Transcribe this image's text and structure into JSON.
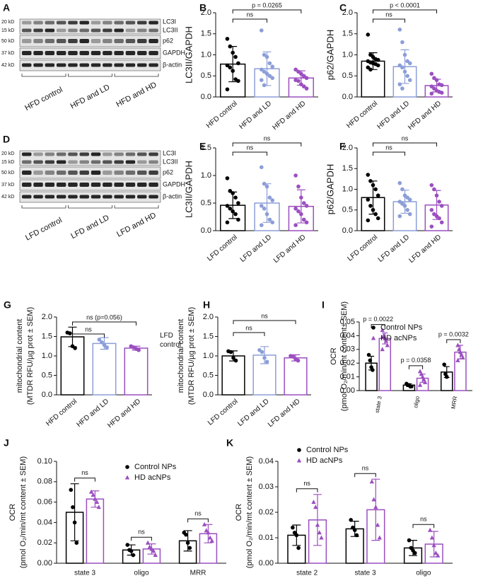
{
  "blots": [
    {
      "panel": "A",
      "kd_labels": [
        "20 kD",
        "15 kD",
        "50 kD",
        "37 kD",
        "42 kD"
      ],
      "proteins": [
        "LC3I",
        "LC3II",
        "p62",
        "GAPDH",
        "β-actin"
      ],
      "groups": [
        "HFD control",
        "HFD and LD",
        "HFD and HD"
      ]
    },
    {
      "panel": "D",
      "kd_labels": [
        "20 kD",
        "15 kD",
        "50 kD",
        "37 kD",
        "42 kD"
      ],
      "proteins": [
        "LC3I",
        "LC3II",
        "p62",
        "GAPDH",
        "β-actin"
      ],
      "groups": [
        "LFD control",
        "LFD and LD",
        "LFD and HD"
      ]
    }
  ],
  "annotation": "LFD control",
  "chart_data": [
    {
      "type": "bar",
      "panel": "B",
      "ylabel": "LC3II/GAPDH",
      "categories": [
        "HFD control",
        "HFD and LD",
        "HFD and HD"
      ],
      "colors": [
        "#000000",
        "#8c9ed8",
        "#9b4fc0"
      ],
      "values": [
        0.78,
        0.67,
        0.45
      ],
      "errors": [
        0.42,
        0.4,
        0.17
      ],
      "points": [
        [
          1.38,
          1.2,
          1.05,
          0.95,
          0.8,
          0.75,
          0.7,
          0.62,
          0.42,
          0.38,
          0.18
        ],
        [
          1.58,
          1.0,
          0.95,
          0.8,
          0.72,
          0.65,
          0.6,
          0.55,
          0.5,
          0.45,
          0.4,
          0.28
        ],
        [
          0.65,
          0.6,
          0.55,
          0.5,
          0.45,
          0.4,
          0.38,
          0.3,
          0.25,
          0.2
        ]
      ],
      "ylim": [
        0,
        2
      ],
      "yticks": [
        {
          "value": 0,
          "label": "0.0"
        },
        0.5,
        {
          "value": 1,
          "label": "1.0"
        },
        1.5,
        {
          "value": 2,
          "label": "2.0"
        }
      ],
      "brackets": [
        {
          "from": "HFD control",
          "to": "HFD and LD",
          "label": "ns"
        },
        {
          "from": "HFD control",
          "to": "HFD and HD",
          "label": "p = 0.0265"
        }
      ]
    },
    {
      "type": "bar",
      "panel": "C",
      "ylabel": "p62/GAPDH",
      "categories": [
        "HFD control",
        "HFD and LD",
        "HFD and HD"
      ],
      "colors": [
        "#000000",
        "#8c9ed8",
        "#9b4fc0"
      ],
      "values": [
        0.85,
        0.72,
        0.27
      ],
      "errors": [
        0.2,
        0.4,
        0.15
      ],
      "points": [
        [
          1.48,
          1.0,
          0.95,
          0.9,
          0.88,
          0.85,
          0.82,
          0.8,
          0.78,
          0.75,
          0.7,
          0.65
        ],
        [
          1.6,
          1.3,
          1.0,
          0.85,
          0.8,
          0.75,
          0.7,
          0.6,
          0.5,
          0.4,
          0.3,
          0.2
        ],
        [
          0.55,
          0.45,
          0.4,
          0.3,
          0.28,
          0.25,
          0.2,
          0.15,
          0.12,
          0.1,
          0.08
        ]
      ],
      "ylim": [
        0,
        2
      ],
      "yticks": [
        {
          "value": 0,
          "label": "0.0"
        },
        0.5,
        {
          "value": 1,
          "label": "1.0"
        },
        1.5,
        {
          "value": 2,
          "label": "2.0"
        }
      ],
      "brackets": [
        {
          "from": "HFD control",
          "to": "HFD and LD",
          "label": "ns"
        },
        {
          "from": "HFD control",
          "to": "HFD and HD",
          "label": "p < 0.0001"
        }
      ]
    },
    {
      "type": "bar",
      "panel": "E",
      "ylabel": "LC3II/GAPDH",
      "categories": [
        "LFD control",
        "LFD and LD",
        "LFD and HD"
      ],
      "colors": [
        "#000000",
        "#8c9ed8",
        "#9b4fc0"
      ],
      "values": [
        0.46,
        0.5,
        0.44
      ],
      "errors": [
        0.24,
        0.35,
        0.3
      ],
      "points": [
        [
          0.95,
          0.72,
          0.68,
          0.6,
          0.5,
          0.45,
          0.4,
          0.35,
          0.3,
          0.2,
          0.15
        ],
        [
          1.15,
          0.85,
          0.8,
          0.6,
          0.55,
          0.45,
          0.4,
          0.3,
          0.2,
          0.15,
          0.1
        ],
        [
          1.0,
          0.8,
          0.6,
          0.5,
          0.45,
          0.4,
          0.35,
          0.3,
          0.2,
          0.15,
          0.1
        ]
      ],
      "ylim": [
        0,
        1.5
      ],
      "yticks": [
        {
          "value": 0,
          "label": "0.0"
        },
        0.5,
        {
          "value": 1,
          "label": "1.0"
        },
        1.5
      ],
      "brackets": [
        {
          "from": "LFD control",
          "to": "LFD and LD",
          "label": "ns"
        },
        {
          "from": "LFD control",
          "to": "LFD and HD",
          "label": "ns"
        }
      ]
    },
    {
      "type": "bar",
      "panel": "F",
      "ylabel": "p62/GAPDH",
      "categories": [
        "LFD control",
        "LFD and LD",
        "LFD and HD"
      ],
      "colors": [
        "#000000",
        "#8c9ed8",
        "#9b4fc0"
      ],
      "values": [
        0.8,
        0.7,
        0.62
      ],
      "errors": [
        0.4,
        0.28,
        0.35
      ],
      "points": [
        [
          1.35,
          1.2,
          1.1,
          1.0,
          0.85,
          0.75,
          0.6,
          0.5,
          0.4,
          0.3,
          0.25
        ],
        [
          1.15,
          1.0,
          0.85,
          0.8,
          0.75,
          0.7,
          0.65,
          0.6,
          0.5,
          0.4,
          0.35
        ],
        [
          1.1,
          1.0,
          0.85,
          0.7,
          0.6,
          0.5,
          0.4,
          0.35,
          0.3,
          0.2,
          0.1
        ]
      ],
      "ylim": [
        0,
        2
      ],
      "yticks": [
        {
          "value": 0,
          "label": "0.0"
        },
        0.5,
        {
          "value": 1,
          "label": "1.0"
        },
        1.5,
        {
          "value": 2,
          "label": "2.0"
        }
      ],
      "brackets": [
        {
          "from": "LFD control",
          "to": "LFD and LD",
          "label": "ns"
        },
        {
          "from": "LFD control",
          "to": "LFD and HD",
          "label": "ns"
        }
      ]
    },
    {
      "type": "bar",
      "panel": "G",
      "ylabel": [
        "mitochondrial content",
        "(MTDR RFU/µg prot ± SEM)"
      ],
      "categories": [
        "HFD control",
        "HFD and LD",
        "HFD and HD"
      ],
      "colors": [
        "#000000",
        "#8c9ed8",
        "#9b4fc0"
      ],
      "values": [
        1.49,
        1.32,
        1.2
      ],
      "errors": [
        0.25,
        0.15,
        0.05
      ],
      "points": [
        [
          1.6,
          1.58,
          1.25,
          1.2
        ],
        [
          1.42,
          1.35,
          1.28,
          1.22
        ],
        [
          1.25,
          1.22,
          1.18,
          1.15
        ]
      ],
      "ylim": [
        0,
        2
      ],
      "yticks": [
        {
          "value": 0,
          "label": "0.0"
        },
        0.5,
        {
          "value": 1,
          "label": "1.0"
        },
        1.5,
        {
          "value": 2,
          "label": "2.0"
        }
      ],
      "brackets": [
        {
          "from": "HFD control",
          "to": "HFD and LD",
          "label": "ns"
        },
        {
          "from": "HFD control",
          "to": "HFD and HD",
          "label": "ns (p=0.056)"
        }
      ]
    },
    {
      "type": "bar",
      "panel": "H",
      "ylabel": [
        "mitochondrial content",
        "(MTDR RFU/µg prot ± SEM)"
      ],
      "categories": [
        "LFD control",
        "LFD and LD",
        "LFD and HD"
      ],
      "colors": [
        "#000000",
        "#8c9ed8",
        "#9b4fc0"
      ],
      "values": [
        1.0,
        1.02,
        0.95
      ],
      "errors": [
        0.13,
        0.22,
        0.08
      ],
      "points": [
        [
          1.12,
          1.1,
          0.95,
          0.88
        ],
        [
          1.15,
          1.1,
          0.95,
          0.85
        ],
        [
          1.0,
          0.98,
          0.92,
          0.88
        ]
      ],
      "ylim": [
        0,
        2
      ],
      "yticks": [
        {
          "value": 0,
          "label": "0.0"
        },
        0.5,
        {
          "value": 1,
          "label": "1.0"
        },
        1.5,
        {
          "value": 2,
          "label": "2.0"
        }
      ],
      "brackets": [
        {
          "from": "LFD control",
          "to": "LFD and LD",
          "label": "ns"
        },
        {
          "from": "LFD control",
          "to": "LFD and HD",
          "label": "ns"
        }
      ]
    },
    {
      "type": "bar",
      "panel": "I",
      "ylabel": [
        "OCR",
        "(pmol O₂/min/mt content± SEM)"
      ],
      "categories": [
        "state 3",
        "oligo",
        "MRR"
      ],
      "legend": "upper right",
      "series": [
        {
          "name": "Control NPs",
          "color": "#000000",
          "marker": "circle",
          "values": [
            0.02,
            0.004,
            0.0135
          ],
          "errors": [
            0.005,
            0.001,
            0.004
          ],
          "points": [
            [
              0.026,
              0.022,
              0.017,
              0.015
            ],
            [
              0.005,
              0.004,
              0.004,
              0.003,
              0.003
            ],
            [
              0.019,
              0.012,
              0.01
            ]
          ]
        },
        {
          "name": "HD acNPs",
          "color": "#9b4fc0",
          "marker": "triangle",
          "values": [
            0.038,
            0.009,
            0.028
          ],
          "errors": [
            0.004,
            0.003,
            0.005
          ],
          "points": [
            [
              0.044,
              0.04,
              0.038,
              0.036,
              0.033,
              0.03
            ],
            [
              0.014,
              0.012,
              0.01,
              0.008,
              0.006,
              0.004
            ],
            [
              0.033,
              0.03,
              0.028,
              0.026,
              0.024,
              0.022
            ]
          ]
        }
      ],
      "ylim": [
        0,
        0.05
      ],
      "yticks": [
        {
          "value": 0,
          "label": "0.00"
        },
        {
          "value": 0.01,
          "label": "0.01"
        },
        {
          "value": 0.02,
          "label": "0.02"
        },
        {
          "value": 0.03,
          "label": "0.03"
        },
        {
          "value": 0.04,
          "label": "0.04"
        },
        {
          "value": 0.05,
          "label": "0.05"
        }
      ],
      "brackets": [
        {
          "category": "state 3",
          "label": "p = 0.0022"
        },
        {
          "category": "oligo",
          "label": "p = 0.0358"
        },
        {
          "category": "MRR",
          "label": "p = 0.0032"
        }
      ]
    },
    {
      "type": "bar",
      "panel": "J",
      "ylabel": [
        "OCR",
        "(pmol O₂/min/mt content ± SEM)"
      ],
      "categories": [
        "state 3",
        "oligo",
        "MRR"
      ],
      "legend": "upper right",
      "series": [
        {
          "name": "Control NPs",
          "color": "#000000",
          "marker": "circle",
          "values": [
            0.05,
            0.013,
            0.022
          ],
          "errors": [
            0.028,
            0.005,
            0.01
          ],
          "points": [
            [
              0.072,
              0.055,
              0.04,
              0.02
            ],
            [
              0.018,
              0.013,
              0.012,
              0.008
            ],
            [
              0.03,
              0.028,
              0.02,
              0.015
            ]
          ]
        },
        {
          "name": "HD acNPs",
          "color": "#9b4fc0",
          "marker": "triangle",
          "values": [
            0.063,
            0.014,
            0.029
          ],
          "errors": [
            0.008,
            0.005,
            0.009
          ],
          "points": [
            [
              0.07,
              0.067,
              0.063,
              0.06,
              0.055
            ],
            [
              0.02,
              0.016,
              0.014,
              0.012,
              0.008
            ],
            [
              0.038,
              0.032,
              0.03,
              0.025,
              0.022
            ]
          ]
        }
      ],
      "ylim": [
        0,
        0.1
      ],
      "yticks": [
        {
          "value": 0,
          "label": "0.00"
        },
        {
          "value": 0.02,
          "label": "0.02"
        },
        {
          "value": 0.04,
          "label": "0.04"
        },
        {
          "value": 0.06,
          "label": "0.06"
        },
        {
          "value": 0.08,
          "label": "0.08"
        },
        {
          "value": 0.1,
          "label": "0.10"
        }
      ],
      "brackets": [
        {
          "category": "state 3",
          "label": "ns"
        },
        {
          "category": "oligo",
          "label": "ns"
        },
        {
          "category": "MRR",
          "label": "ns"
        }
      ]
    },
    {
      "type": "bar",
      "panel": "K",
      "ylabel": [
        "OCR",
        "(pmol O₂/min/mt content ± SEM)"
      ],
      "categories": [
        "state 2",
        "state 3",
        "oligo"
      ],
      "legend": "top",
      "series": [
        {
          "name": "Control NPs",
          "color": "#000000",
          "marker": "circle",
          "values": [
            0.011,
            0.0135,
            0.006
          ],
          "errors": [
            0.004,
            0.003,
            0.003
          ],
          "points": [
            [
              0.014,
              0.012,
              0.011,
              0.006
            ],
            [
              0.017,
              0.014,
              0.013,
              0.011
            ],
            [
              0.009,
              0.006,
              0.005,
              0.004
            ]
          ]
        },
        {
          "name": "HD acNPs",
          "color": "#9b4fc0",
          "marker": "triangle",
          "values": [
            0.017,
            0.021,
            0.0075
          ],
          "errors": [
            0.01,
            0.012,
            0.005
          ],
          "points": [
            [
              0.024,
              0.022,
              0.015,
              0.012,
              0.01
            ],
            [
              0.032,
              0.025,
              0.022,
              0.015,
              0.01
            ],
            [
              0.013,
              0.01,
              0.007,
              0.004,
              0.003
            ]
          ]
        }
      ],
      "ylim": [
        0,
        0.04
      ],
      "yticks": [
        {
          "value": 0,
          "label": "0.00"
        },
        {
          "value": 0.01,
          "label": "0.01"
        },
        {
          "value": 0.02,
          "label": "0.02"
        },
        {
          "value": 0.03,
          "label": "0.03"
        },
        {
          "value": 0.04,
          "label": "0.04"
        }
      ],
      "brackets": [
        {
          "category": "state 2",
          "label": "ns"
        },
        {
          "category": "state 3",
          "label": "ns"
        },
        {
          "category": "oligo",
          "label": "ns"
        }
      ]
    }
  ]
}
